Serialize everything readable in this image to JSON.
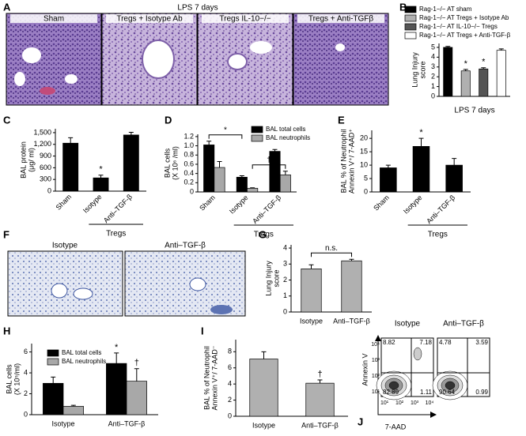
{
  "panel_a": {
    "label": "A",
    "title": "LPS 7 days",
    "images": [
      "Sham",
      "Tregs + Isotype Ab",
      "Tregs IL-10−/−",
      "Tregs + Anti-TGFβ"
    ]
  },
  "panel_f": {
    "label": "F",
    "images": [
      "Isotype",
      "Anti–TGF-β"
    ]
  },
  "panel_j": {
    "label": "J",
    "ylabel": "Annexin V",
    "xlabel": "7-AAD",
    "axis_ticks": [
      "10¹",
      "10²",
      "10³",
      "10⁴"
    ],
    "plots": [
      {
        "title": "Isotype",
        "quadrants": [
          8.82,
          7.18,
          82.89,
          1.11
        ]
      },
      {
        "title": "Anti–TGF-β",
        "quadrants": [
          4.78,
          3.59,
          90.64,
          0.99
        ]
      }
    ]
  },
  "chart_data": [
    {
      "panel": "B",
      "type": "bar",
      "ylabel": [
        "Lung Injury",
        "score"
      ],
      "xlabel": "LPS 7 days",
      "categories": [
        "Rag-1−/− AT sham",
        "Rag-1−/− AT Tregs + Isotype Ab",
        "Rag-1−/− AT IL-10−/− Tregs",
        "Rag-1−/− AT Tregs + Anti-TGF-β"
      ],
      "colors": [
        "#000000",
        "#b0b0b0",
        "#555555",
        "#ffffff"
      ],
      "values": [
        5.0,
        2.6,
        2.8,
        4.7
      ],
      "errors": [
        0.1,
        0.15,
        0.12,
        0.15
      ],
      "ylim": [
        0,
        5.4
      ],
      "yticks": [
        0,
        1,
        2,
        3,
        4,
        5
      ],
      "legend": "top",
      "annotations": [
        {
          "text": "*",
          "category": "Rag-1−/− AT Tregs + Isotype Ab"
        },
        {
          "text": "*",
          "category": "Rag-1−/− AT IL-10−/− Tregs"
        }
      ]
    },
    {
      "panel": "C",
      "type": "bar",
      "ylabel": [
        "BAL protein",
        "(μg/ ml)"
      ],
      "categories": [
        "Sham",
        "Isotype",
        "Anti–TGF-β"
      ],
      "color": "#000000",
      "values": [
        1230,
        340,
        1440
      ],
      "errors": [
        140,
        70,
        70
      ],
      "ylim": [
        0,
        1600
      ],
      "yticks": [
        0,
        300,
        600,
        900,
        {
          "value": 1200,
          "label": "1,200"
        },
        {
          "value": 1500,
          "label": "1,500"
        }
      ],
      "group": {
        "label": "Tregs",
        "categories": [
          "Isotype",
          "Anti–TGF-β"
        ]
      },
      "annotations": [
        {
          "text": "*",
          "category": "Isotype"
        }
      ]
    },
    {
      "panel": "D",
      "type": "bar",
      "ylabel": [
        "BAL cells",
        "(X 10⁶ /ml)"
      ],
      "categories": [
        "Sham",
        "Isotype",
        "Anti–TGF-β"
      ],
      "series": [
        {
          "name": "BAL total cells",
          "color": "#000000",
          "values": [
            1.02,
            0.32,
            0.88
          ],
          "errors": [
            0.08,
            0.03,
            0.04
          ]
        },
        {
          "name": "BAL neutrophils",
          "color": "#a8a8a8",
          "values": [
            0.53,
            0.08,
            0.37
          ],
          "errors": [
            0.13,
            0.01,
            0.08
          ]
        }
      ],
      "ylim": [
        0,
        1.25
      ],
      "yticks": [
        0,
        0.2,
        0.4,
        0.6,
        0.8,
        {
          "value": 1,
          "label": "1.0"
        },
        1.2
      ],
      "legend": "upper right",
      "group": {
        "label": "Tregs",
        "categories": [
          "Isotype",
          "Anti–TGF-β"
        ]
      },
      "annotations": [
        {
          "text": "*",
          "categories": [
            "Sham",
            "Isotype"
          ],
          "series": "BAL total cells"
        },
        {
          "text": "†",
          "categories": [
            "Isotype",
            "Anti–TGF-β"
          ],
          "series": "BAL neutrophils"
        }
      ]
    },
    {
      "panel": "E",
      "type": "bar",
      "ylabel": [
        "BAL % of Neutrophil",
        "Annexin V⁺/ 7-AAD⁺"
      ],
      "categories": [
        "Sham",
        "Isotype",
        "Anti–TGF-β"
      ],
      "color": "#000000",
      "values": [
        9,
        17,
        10
      ],
      "errors": [
        1,
        3,
        2.5
      ],
      "ylim": [
        0,
        23
      ],
      "yticks": [
        0,
        5,
        10,
        15,
        20
      ],
      "group": {
        "label": "Tregs",
        "categories": [
          "Isotype",
          "Anti–TGF-β"
        ]
      },
      "annotations": [
        {
          "text": "*",
          "category": "Isotype"
        }
      ]
    },
    {
      "panel": "G",
      "type": "bar",
      "ylabel": [
        "Lung Injury",
        "score"
      ],
      "categories": [
        "Isotype",
        "Anti–TGF-β"
      ],
      "color": "#b0b0b0",
      "values": [
        2.7,
        3.2
      ],
      "errors": [
        0.25,
        0.1
      ],
      "ylim": [
        0,
        4.2
      ],
      "yticks": [
        0,
        1,
        2,
        3,
        4
      ],
      "annotations": [
        {
          "text": "n.s.",
          "categories": [
            "Isotype",
            "Anti–TGF-β"
          ]
        }
      ]
    },
    {
      "panel": "H",
      "type": "bar",
      "ylabel": [
        "BAL cells",
        "(X 10⁵/ml)"
      ],
      "categories": [
        "Isotype",
        "Anti–TGF-β"
      ],
      "series": [
        {
          "name": "BAL total cells",
          "color": "#000000",
          "values": [
            3.0,
            4.9
          ],
          "errors": [
            0.6,
            1.0
          ]
        },
        {
          "name": "BAL neutrophils",
          "color": "#a8a8a8",
          "values": [
            0.8,
            3.2
          ],
          "errors": [
            0.1,
            1.2
          ]
        }
      ],
      "ylim": [
        0,
        6.8
      ],
      "yticks": [
        0,
        2,
        4,
        6
      ],
      "legend": "upper left",
      "annotations": [
        {
          "text": "*",
          "category": "Anti–TGF-β",
          "series": "BAL total cells"
        },
        {
          "text": "†",
          "category": "Anti–TGF-β",
          "series": "BAL neutrophils"
        }
      ]
    },
    {
      "panel": "I",
      "type": "bar",
      "ylabel": [
        "BAL % of Neutrophil",
        "Annexin V⁺/ 7-AAD⁻"
      ],
      "categories": [
        "Isotype",
        "Anti–TGF-β"
      ],
      "color": "#b0b0b0",
      "values": [
        7.1,
        4.1
      ],
      "errors": [
        0.9,
        0.4
      ],
      "ylim": [
        0,
        9.5
      ],
      "yticks": [
        0,
        2,
        4,
        6,
        8
      ],
      "annotations": [
        {
          "text": "†",
          "category": "Anti–TGF-β"
        }
      ]
    }
  ]
}
